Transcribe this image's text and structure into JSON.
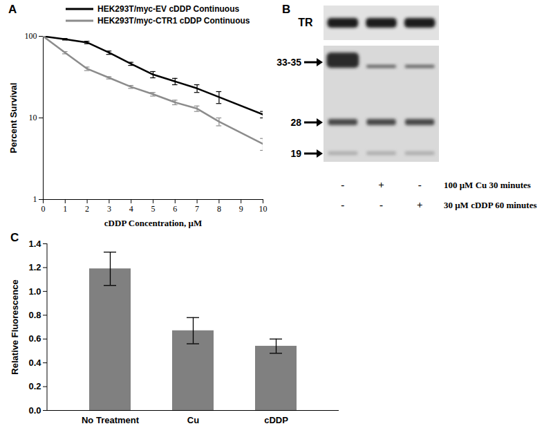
{
  "chart_data": [
    {
      "type": "line",
      "title": "A",
      "x_label": "cDDP Concentration, μM",
      "y_label": "Percent Survival",
      "log": "y",
      "legend": "top",
      "x": [
        0,
        1,
        2,
        3,
        4,
        5,
        6,
        7,
        8,
        10
      ],
      "xlim": [
        0,
        10
      ],
      "xticks": [
        0,
        1,
        2,
        3,
        4,
        5,
        6,
        7,
        8,
        9,
        10
      ],
      "ylim": [
        1,
        100
      ],
      "yticks": [
        1,
        10,
        100
      ],
      "series": [
        {
          "name": "HEK293T/myc-EV cDDP Continuous",
          "color": "#000000",
          "values": [
            100,
            92,
            84,
            63,
            46,
            34,
            28,
            23,
            18,
            11
          ],
          "errors": [
            0,
            2,
            3,
            3,
            2,
            3,
            2.5,
            2.5,
            3,
            1
          ]
        },
        {
          "name": "HEK293T/myc-CTR1 cDDP Continuous",
          "color": "#8c8c8c",
          "values": [
            100,
            63,
            40,
            31,
            24,
            19.5,
            15.5,
            13,
            9,
            4.8
          ],
          "errors": [
            0,
            2,
            2,
            1,
            1,
            1,
            1,
            1,
            1,
            0.8
          ]
        }
      ]
    },
    {
      "type": "blot",
      "title": "B",
      "protein_label": "TR",
      "band_labels": [
        "33-35",
        "28",
        "19"
      ],
      "treatments": [
        {
          "label": "100 μM Cu 30 minutes",
          "lanes": [
            "-",
            "+",
            "-"
          ]
        },
        {
          "label": "30 μM cDDP 60 minutes",
          "lanes": [
            "-",
            "-",
            "+"
          ]
        }
      ]
    },
    {
      "type": "bar",
      "title": "C",
      "y_label": "Relative Fluorescence",
      "categories": [
        "No Treatment",
        "Cu",
        "cDDP"
      ],
      "values": [
        1.19,
        0.67,
        0.54
      ],
      "errors": [
        0.14,
        0.11,
        0.06
      ],
      "color": "#808080",
      "ylim": [
        0,
        1.4
      ],
      "yticks": [
        {
          "value": 0,
          "label": "0.0"
        },
        0.2,
        0.4,
        0.6,
        0.8,
        {
          "value": 1,
          "label": "1.0"
        },
        1.2,
        1.4
      ]
    }
  ]
}
